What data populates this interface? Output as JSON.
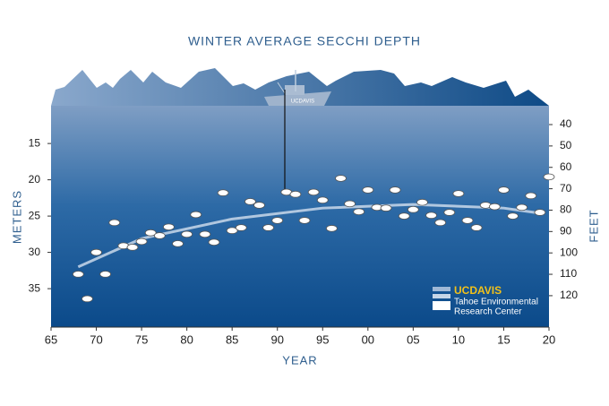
{
  "chart_data": {
    "type": "scatter",
    "title": "WINTER AVERAGE SECCHI DEPTH",
    "xlabel": "YEAR",
    "ylabel": "METERS",
    "y2label": "FEET",
    "boat_label": "UCDAVIS",
    "logo": {
      "brand": "UCDAVIS",
      "line1": "Tahoe Environmental",
      "line2": "Research Center"
    },
    "x": [
      1968,
      1969,
      1970,
      1971,
      1972,
      1973,
      1974,
      1975,
      1976,
      1977,
      1978,
      1979,
      1980,
      1981,
      1982,
      1983,
      1984,
      1985,
      1986,
      1987,
      1988,
      1989,
      1990,
      1991,
      1992,
      1993,
      1994,
      1995,
      1996,
      1997,
      1998,
      1999,
      2000,
      2001,
      2002,
      2003,
      2004,
      2005,
      2006,
      2007,
      2008,
      2009,
      2010,
      2011,
      2012,
      2013,
      2014,
      2015,
      2016,
      2017,
      2018,
      2019,
      2020
    ],
    "values": [
      33.0,
      36.4,
      30.0,
      33.0,
      25.9,
      29.1,
      29.3,
      28.5,
      27.3,
      27.7,
      26.5,
      28.8,
      27.5,
      24.8,
      27.5,
      28.6,
      21.8,
      27.0,
      26.6,
      23.0,
      23.5,
      26.6,
      25.6,
      21.7,
      22.0,
      25.6,
      21.7,
      22.8,
      26.7,
      19.8,
      23.3,
      24.4,
      21.4,
      23.8,
      23.9,
      21.4,
      25.0,
      24.1,
      23.1,
      24.9,
      25.9,
      24.5,
      21.9,
      25.6,
      26.6,
      23.5,
      23.7,
      21.4,
      25.0,
      23.8,
      22.2,
      24.5,
      19.6
    ],
    "trend": {
      "x": [
        1968,
        1975,
        1985,
        1995,
        2005,
        2015,
        2019
      ],
      "values": [
        32.0,
        28.1,
        25.4,
        23.9,
        23.4,
        23.9,
        24.6
      ]
    },
    "xlim": [
      1965,
      2020
    ],
    "xticks": [
      {
        "value": 1965,
        "label": "65"
      },
      {
        "value": 1970,
        "label": "70"
      },
      {
        "value": 1975,
        "label": "75"
      },
      {
        "value": 1980,
        "label": "80"
      },
      {
        "value": 1985,
        "label": "85"
      },
      {
        "value": 1990,
        "label": "90"
      },
      {
        "value": 1995,
        "label": "95"
      },
      {
        "value": 2000,
        "label": "00"
      },
      {
        "value": 2005,
        "label": "05"
      },
      {
        "value": 2010,
        "label": "10"
      },
      {
        "value": 2015,
        "label": "15"
      },
      {
        "value": 2020,
        "label": "20"
      }
    ],
    "ylim": [
      9.8,
      40.3
    ],
    "yticks": [
      15,
      20,
      25,
      30,
      35
    ],
    "y_inverted": true,
    "y2lim": [
      31.2,
      134.7
    ],
    "y2ticks": [
      40,
      50,
      60,
      70,
      80,
      90,
      100,
      110,
      120
    ],
    "marker_color": "#ffffff",
    "trend_color": "#c9d8ea"
  }
}
